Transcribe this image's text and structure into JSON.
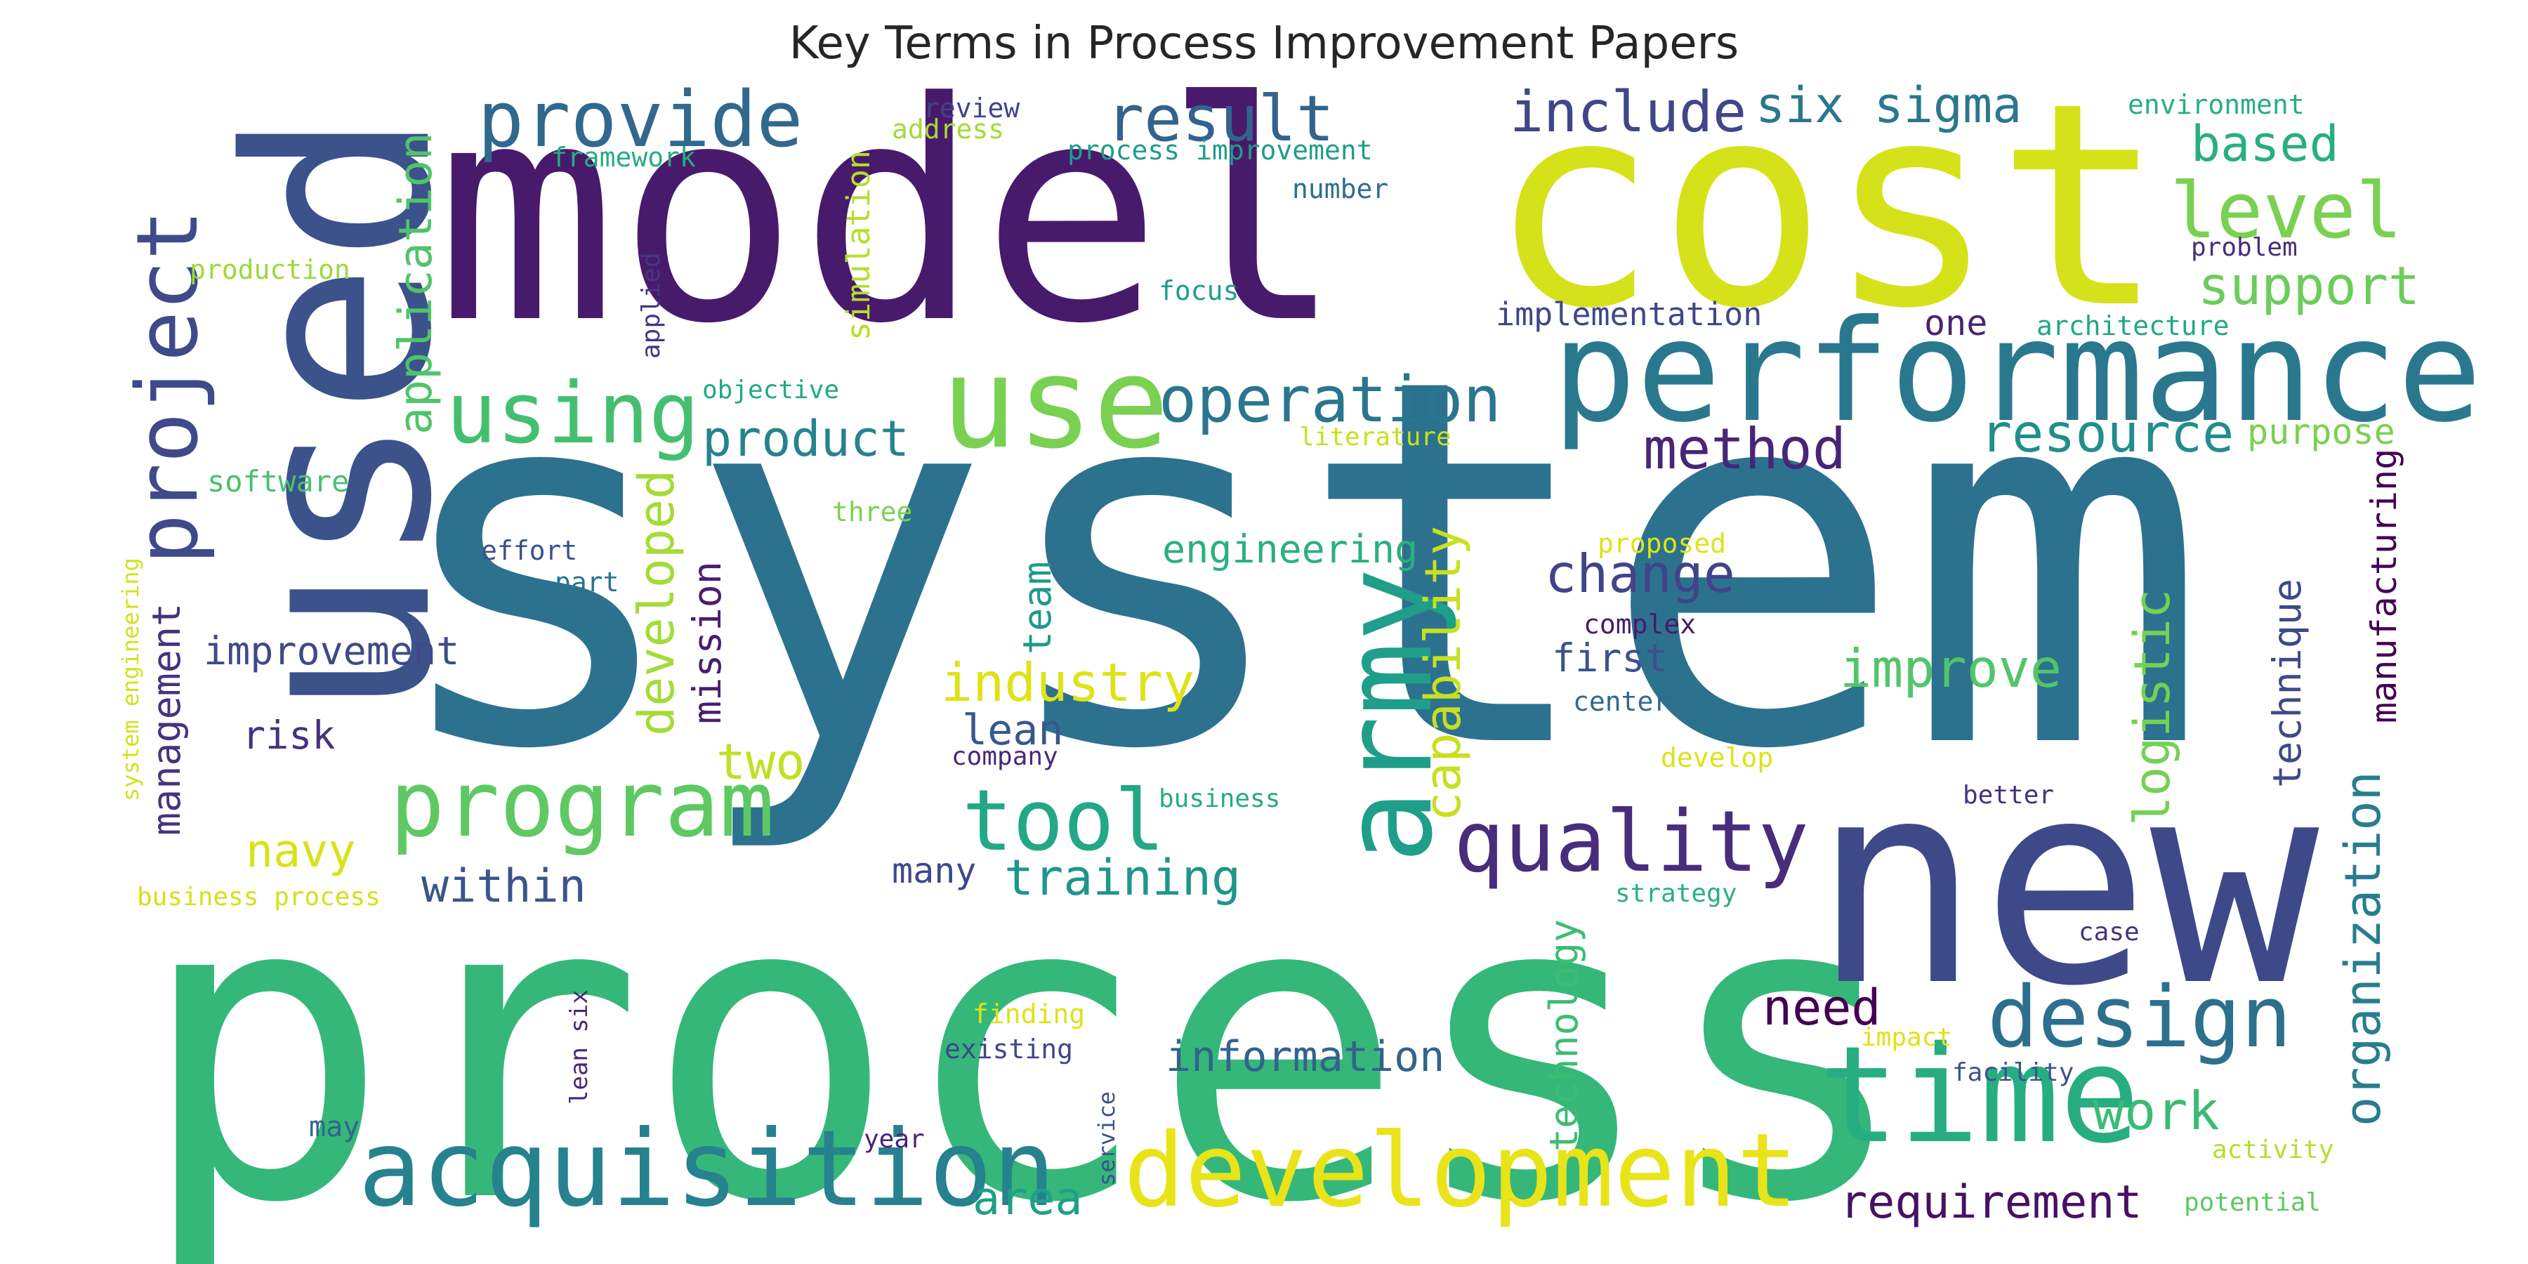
{
  "title": "Key Terms in Process Improvement Papers",
  "palette": "viridis",
  "background": "#ffffff",
  "words": [
    {
      "text": "system",
      "color": "#2c728e"
    },
    {
      "text": "process",
      "color": "#35b779"
    },
    {
      "text": "model",
      "color": "#481a6c"
    },
    {
      "text": "cost",
      "color": "#d5e21a"
    },
    {
      "text": "used",
      "color": "#3b528b"
    },
    {
      "text": "new",
      "color": "#3e4989"
    },
    {
      "text": "performance",
      "color": "#2a788e"
    },
    {
      "text": "use",
      "color": "#7ad151"
    },
    {
      "text": "time",
      "color": "#27ad81"
    },
    {
      "text": "army",
      "color": "#1f9e89"
    },
    {
      "text": "acquisition",
      "color": "#26828e"
    },
    {
      "text": "development",
      "color": "#e8e419"
    },
    {
      "text": "program",
      "color": "#5ec962"
    },
    {
      "text": "project",
      "color": "#3e4a89"
    },
    {
      "text": "design",
      "color": "#2d708e"
    },
    {
      "text": "quality",
      "color": "#472d7b"
    },
    {
      "text": "tool",
      "color": "#22a884"
    },
    {
      "text": "using",
      "color": "#44bf70"
    },
    {
      "text": "operation",
      "color": "#2a768e"
    },
    {
      "text": "provide",
      "color": "#31688e"
    },
    {
      "text": "result",
      "color": "#33638d"
    },
    {
      "text": "level",
      "color": "#7ad151"
    },
    {
      "text": "organization",
      "color": "#287d8e"
    },
    {
      "text": "management",
      "color": "#46337e"
    },
    {
      "text": "application",
      "color": "#50c46a"
    },
    {
      "text": "product",
      "color": "#25848e"
    },
    {
      "text": "method",
      "color": "#482576"
    },
    {
      "text": "support",
      "color": "#6ccd5a"
    },
    {
      "text": "resource",
      "color": "#228d8d"
    },
    {
      "text": "include",
      "color": "#404688"
    },
    {
      "text": "six sigma",
      "color": "#2a788e"
    },
    {
      "text": "based",
      "color": "#29af7f"
    },
    {
      "text": "capability",
      "color": "#c8e020"
    },
    {
      "text": "developed",
      "color": "#a5db36"
    },
    {
      "text": "logistic",
      "color": "#75d054"
    },
    {
      "text": "improve",
      "color": "#52c569"
    },
    {
      "text": "industry",
      "color": "#dde318"
    },
    {
      "text": "change",
      "color": "#414487"
    },
    {
      "text": "training",
      "color": "#1f968b"
    },
    {
      "text": "requirement",
      "color": "#471164"
    },
    {
      "text": "work",
      "color": "#3bbb75"
    },
    {
      "text": "information",
      "color": "#33638d"
    },
    {
      "text": "need",
      "color": "#440154"
    },
    {
      "text": "technology",
      "color": "#3dbc74"
    },
    {
      "text": "manufacturing",
      "color": "#440154"
    },
    {
      "text": "technique",
      "color": "#3e4a89"
    },
    {
      "text": "within",
      "color": "#39558c"
    },
    {
      "text": "two",
      "color": "#c2df23"
    },
    {
      "text": "navy",
      "color": "#d8e219"
    },
    {
      "text": "area",
      "color": "#1fa088"
    },
    {
      "text": "improvement",
      "color": "#3e4a89"
    },
    {
      "text": "engineering",
      "color": "#2ab07f"
    },
    {
      "text": "mission",
      "color": "#481f70"
    },
    {
      "text": "team",
      "color": "#1f9a8a"
    },
    {
      "text": "first",
      "color": "#3a538b"
    },
    {
      "text": "lean",
      "color": "#38588c"
    },
    {
      "text": "risk",
      "color": "#46327e"
    },
    {
      "text": "one",
      "color": "#482475"
    },
    {
      "text": "purpose",
      "color": "#7ad151"
    },
    {
      "text": "simulation",
      "color": "#b5de2b"
    },
    {
      "text": "implementation",
      "color": "#3f4788"
    },
    {
      "text": "many",
      "color": "#3e4989"
    },
    {
      "text": "process improvement",
      "color": "#1f9e89"
    },
    {
      "text": "architecture",
      "color": "#22a785"
    },
    {
      "text": "environment",
      "color": "#28ae80"
    },
    {
      "text": "software",
      "color": "#48c16e"
    },
    {
      "text": "review",
      "color": "#414487"
    },
    {
      "text": "address",
      "color": "#a2da37"
    },
    {
      "text": "framework",
      "color": "#27ad81"
    },
    {
      "text": "production",
      "color": "#9bd93c"
    },
    {
      "text": "number",
      "color": "#2e6f8e"
    },
    {
      "text": "focus",
      "color": "#1f9e89"
    },
    {
      "text": "problem",
      "color": "#472d7b"
    },
    {
      "text": "objective",
      "color": "#22a884"
    },
    {
      "text": "literature",
      "color": "#c8e020"
    },
    {
      "text": "applied",
      "color": "#453781"
    },
    {
      "text": "three",
      "color": "#7ad151"
    },
    {
      "text": "effort",
      "color": "#3b528b"
    },
    {
      "text": "part",
      "color": "#2c728e"
    },
    {
      "text": "proposed",
      "color": "#dde318"
    },
    {
      "text": "complex",
      "color": "#481a6c"
    },
    {
      "text": "center",
      "color": "#31688e"
    },
    {
      "text": "develop",
      "color": "#dde318"
    },
    {
      "text": "company",
      "color": "#482878"
    },
    {
      "text": "business",
      "color": "#25ab82"
    },
    {
      "text": "better",
      "color": "#46327e"
    },
    {
      "text": "strategy",
      "color": "#2ab07f"
    },
    {
      "text": "case",
      "color": "#46337e"
    },
    {
      "text": "system engineering",
      "color": "#d2e21b"
    },
    {
      "text": "business process",
      "color": "#d2e21b"
    },
    {
      "text": "finding",
      "color": "#dde318"
    },
    {
      "text": "existing",
      "color": "#404688"
    },
    {
      "text": "impact",
      "color": "#dde318"
    },
    {
      "text": "facility",
      "color": "#3b528b"
    },
    {
      "text": "lean six",
      "color": "#482878"
    },
    {
      "text": "may",
      "color": "#33638d"
    },
    {
      "text": "year",
      "color": "#482475"
    },
    {
      "text": "service",
      "color": "#3b528b"
    },
    {
      "text": "activity",
      "color": "#b5de2b"
    },
    {
      "text": "potential",
      "color": "#5ec962"
    }
  ]
}
